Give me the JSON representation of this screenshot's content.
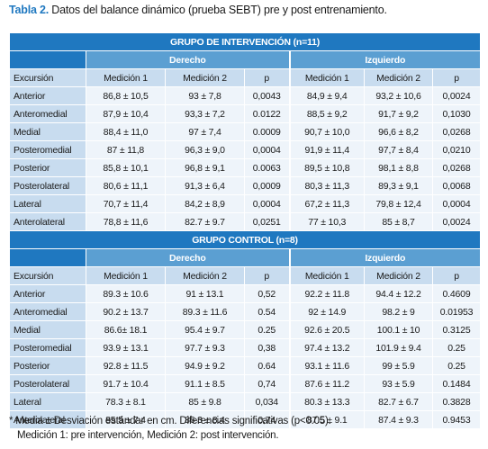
{
  "caption": {
    "label": "Tabla 2.",
    "text": " Datos del balance dinámico (prueba SEBT) pre y post entrenamiento."
  },
  "columns": [
    "Excursión",
    "Medición 1",
    "Medición 2",
    "p",
    "Medición 1",
    "Medición 2",
    "p"
  ],
  "sides": {
    "right": "Derecho",
    "left": "Izquierdo"
  },
  "groups": [
    {
      "title": "GRUPO DE INTERVENCIÓN (n=11)",
      "rows": [
        [
          "Anterior",
          "86,8 ± 10,5",
          "93 ± 7,8",
          "0,0043",
          "84,9 ± 9,4",
          "93,2 ± 10,6",
          "0,0024"
        ],
        [
          "Anteromedial",
          "87,9 ± 10,4",
          "93,3 ± 7,2",
          "0.0122",
          "88,5 ± 9,2",
          "91,7 ± 9,2",
          "0,1030"
        ],
        [
          "Medial",
          "88,4 ± 11,0",
          "97 ± 7,4",
          "0.0009",
          "90,7 ± 10,0",
          "96,6 ± 8,2",
          "0,0268"
        ],
        [
          "Posteromedial",
          "87 ± 11,8",
          "96,3 ± 9,0",
          "0,0004",
          "91,9 ± 11,4",
          "97,7 ± 8,4",
          "0,0210"
        ],
        [
          "Posterior",
          "85,8 ± 10,1",
          "96,8 ± 9,1",
          "0.0063",
          "89,5 ± 10,8",
          "98,1 ± 8,8",
          "0,0268"
        ],
        [
          "Posterolateral",
          "80,6 ± 11,1",
          "91,3 ± 6,4",
          "0,0009",
          "80,3 ± 11,3",
          "89,3 ± 9,1",
          "0,0068"
        ],
        [
          "Lateral",
          "70,7 ± 11,4",
          "84,2 ± 8,9",
          "0,0004",
          "67,2 ± 11,3",
          "79,8 ± 12,4",
          "0,0004"
        ],
        [
          "Anterolateral",
          "78,8 ± 11,6",
          "82.7 ± 9.7",
          "0,0251",
          "77 ± 10,3",
          "85 ± 8,7",
          "0,0024"
        ]
      ]
    },
    {
      "title": "GRUPO CONTROL  (n=8)",
      "rows": [
        [
          "Anterior",
          "89.3 ± 10.6",
          "91 ± 13.1",
          "0,52",
          "92.2 ± 11.8",
          "94.4 ± 12.2",
          "0.4609"
        ],
        [
          "Anteromedial",
          "90.2 ± 13.7",
          "89.3 ± 11.6",
          "0.54",
          "92 ± 14.9",
          "98.2 ± 9",
          "0.01953"
        ],
        [
          "Medial",
          "86.6± 18.1",
          "95.4 ± 9.7",
          "0.25",
          "92.6 ± 20.5",
          "100.1 ± 10",
          "0.3125"
        ],
        [
          "Posteromedial",
          "93.9 ± 13.1",
          "97.7 ± 9.3",
          "0,38",
          "97.4 ± 13.2",
          "101.9 ± 9.4",
          "0.25"
        ],
        [
          "Posterior",
          "92.8 ± 11.5",
          "94.9 ± 9.2",
          "0.64",
          "93.1 ± 11.6",
          "99 ± 5.9",
          "0.25"
        ],
        [
          "Posterolateral",
          "91.7 ± 10.4",
          "91.1 ± 8.5",
          "0,74",
          "87.6 ± 11.2",
          "93 ± 5.9",
          "0.1484"
        ],
        [
          "Lateral",
          "78.3 ± 8.1",
          "85 ± 9.8",
          "0,034",
          "80.3 ± 13.3",
          "82.7 ± 6.7",
          "0.3828"
        ],
        [
          "Anterolateral",
          "85.5 ± 7.4",
          "86.3 ± 8.4",
          "0,74",
          "87.5 ± 9.1",
          "87.4 ± 9.3",
          "0.9453"
        ]
      ]
    }
  ],
  "footnote": [
    "* Media ± Desviación estándar en cm. Diferencias significativas (p<0.05).",
    "   Medición 1: pre intervención, Medición 2: post intervención."
  ]
}
